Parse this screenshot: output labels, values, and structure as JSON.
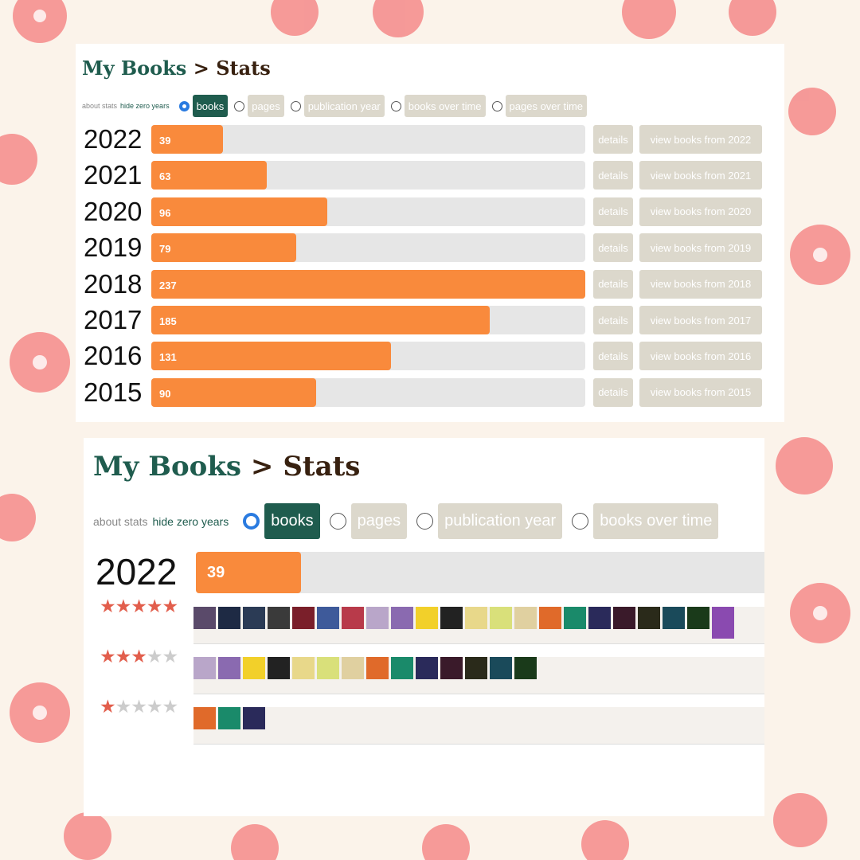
{
  "panel_top": {
    "title_link": "My Books",
    "separator": ">",
    "title": "Stats",
    "about": "about stats",
    "hide_zero": "hide zero years",
    "options": [
      "books",
      "pages",
      "publication year",
      "books over time",
      "pages over time"
    ],
    "selected": 0,
    "rows": [
      {
        "year": "2022",
        "books": 39,
        "details": "details",
        "view": "view books from 2022"
      },
      {
        "year": "2021",
        "books": 63,
        "details": "details",
        "view": "view books from 2021"
      },
      {
        "year": "2020",
        "books": 96,
        "details": "details",
        "view": "view books from 2020"
      },
      {
        "year": "2019",
        "books": 79,
        "details": "details",
        "view": "view books from 2019"
      },
      {
        "year": "2018",
        "books": 237,
        "details": "details",
        "view": "view books from 2018"
      },
      {
        "year": "2017",
        "books": 185,
        "details": "details",
        "view": "view books from 2017"
      },
      {
        "year": "2016",
        "books": 131,
        "details": "details",
        "view": "view books from 2016"
      },
      {
        "year": "2015",
        "books": 90,
        "details": "details",
        "view": "view books from 2015"
      }
    ]
  },
  "panel_bottom": {
    "title_link": "My Books",
    "separator": ">",
    "title": "Stats",
    "about": "about stats",
    "hide_zero": "hide zero years",
    "options": [
      "books",
      "pages",
      "publication year",
      "books over time"
    ],
    "selected": 0,
    "year": "2022",
    "books": 39,
    "ratings": [
      {
        "stars": 5,
        "covers": 22
      },
      {
        "stars": 3,
        "covers": 14
      },
      {
        "stars": 1,
        "covers": 3
      }
    ]
  }
}
